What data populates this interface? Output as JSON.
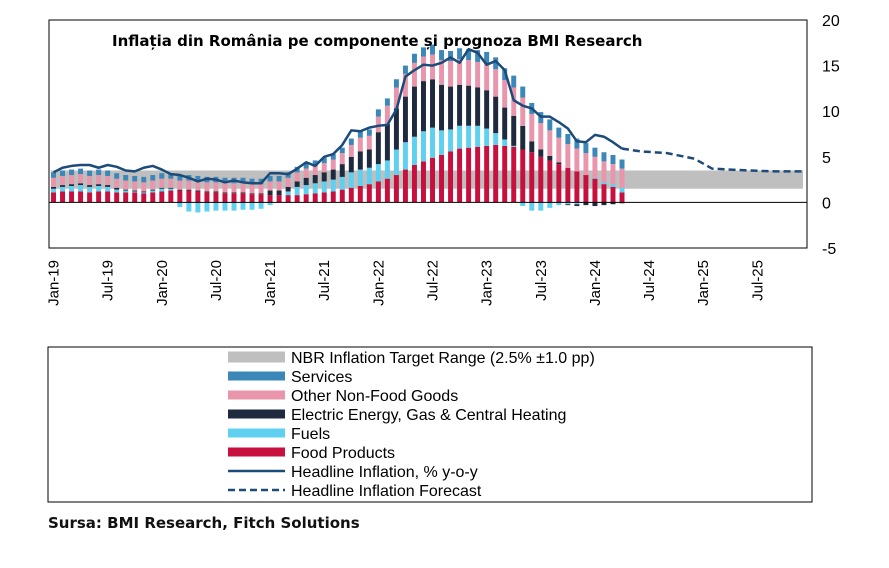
{
  "chart_data": {
    "type": "bar",
    "title": "Inflația din România pe componente și prognoza BMI Research",
    "y_ticks": [
      "20",
      "15",
      "10",
      "5",
      "0",
      "-5"
    ],
    "ylim": [
      -5,
      20
    ],
    "x_ticks": [
      "Jan-19",
      "Jul-19",
      "Jan-20",
      "Jul-20",
      "Jan-21",
      "Jul-21",
      "Jan-22",
      "Jul-22",
      "Jan-23",
      "Jul-23",
      "Jan-24",
      "Jul-24",
      "Jan-25",
      "Jul-25"
    ],
    "x_range": [
      "2019-01",
      "2025-12"
    ],
    "grid": false,
    "legend_position": "below",
    "legend": [
      {
        "label": "NBR Inflation Target Range (2.5% ±1.0 pp)",
        "key": "target",
        "kind": "band",
        "color": "#bfbfbf"
      },
      {
        "label": "Services",
        "key": "services",
        "kind": "bar",
        "color": "#3a87b8"
      },
      {
        "label": "Other Non-Food Goods",
        "key": "other_non_food",
        "kind": "bar",
        "color": "#e996ad"
      },
      {
        "label": "Electric Energy, Gas & Central Heating",
        "key": "energy",
        "kind": "bar",
        "color": "#1f2a3e"
      },
      {
        "label": "Fuels",
        "key": "fuels",
        "kind": "bar",
        "color": "#5fd0ef"
      },
      {
        "label": "Food Products",
        "key": "food",
        "kind": "bar",
        "color": "#c8103e"
      },
      {
        "label": "Headline Inflation, % y-o-y",
        "key": "headline",
        "kind": "line",
        "color": "#1c4b7a"
      },
      {
        "label": "Headline Inflation Forecast",
        "key": "forecast",
        "kind": "dashed",
        "color": "#1c4b7a"
      }
    ],
    "target_range": [
      1.5,
      3.5
    ],
    "stacked_bars": {
      "months": [
        "2019-01",
        "2019-02",
        "2019-03",
        "2019-04",
        "2019-05",
        "2019-06",
        "2019-07",
        "2019-08",
        "2019-09",
        "2019-10",
        "2019-11",
        "2019-12",
        "2020-01",
        "2020-02",
        "2020-03",
        "2020-04",
        "2020-05",
        "2020-06",
        "2020-07",
        "2020-08",
        "2020-09",
        "2020-10",
        "2020-11",
        "2020-12",
        "2021-01",
        "2021-02",
        "2021-03",
        "2021-04",
        "2021-05",
        "2021-06",
        "2021-07",
        "2021-08",
        "2021-09",
        "2021-10",
        "2021-11",
        "2021-12",
        "2022-01",
        "2022-02",
        "2022-03",
        "2022-04",
        "2022-05",
        "2022-06",
        "2022-07",
        "2022-08",
        "2022-09",
        "2022-10",
        "2022-11",
        "2022-12",
        "2023-01",
        "2023-02",
        "2023-03",
        "2023-04",
        "2023-05",
        "2023-06",
        "2023-07",
        "2023-08",
        "2023-09",
        "2023-10",
        "2023-11",
        "2023-12",
        "2024-01",
        "2024-02",
        "2024-03",
        "2024-04"
      ],
      "food": [
        1.1,
        1.2,
        1.2,
        1.2,
        1.1,
        1.2,
        1.2,
        1.1,
        1.1,
        1.1,
        1.0,
        1.1,
        1.2,
        1.3,
        1.3,
        1.3,
        1.2,
        1.1,
        1.1,
        1.0,
        1.0,
        1.0,
        0.9,
        0.9,
        0.8,
        0.8,
        0.8,
        0.8,
        0.9,
        1.0,
        1.1,
        1.2,
        1.4,
        1.6,
        1.8,
        2.0,
        2.3,
        2.6,
        3.0,
        3.6,
        4.1,
        4.5,
        4.9,
        5.2,
        5.6,
        5.9,
        6.0,
        6.1,
        6.2,
        6.3,
        6.2,
        6.1,
        5.8,
        5.5,
        5.0,
        4.6,
        4.2,
        3.8,
        3.4,
        3.0,
        2.6,
        2.0,
        1.7,
        1.1
      ],
      "fuels": [
        0.4,
        0.5,
        0.6,
        0.7,
        0.6,
        0.6,
        0.5,
        0.3,
        0.2,
        0.1,
        0.1,
        0.2,
        0.3,
        0.2,
        -0.5,
        -1.0,
        -1.1,
        -1.0,
        -0.9,
        -0.9,
        -0.9,
        -0.8,
        -0.8,
        -0.7,
        -0.3,
        0.0,
        0.4,
        0.9,
        1.0,
        1.1,
        1.2,
        1.3,
        1.4,
        1.7,
        1.8,
        1.8,
        1.9,
        2.0,
        2.8,
        3.0,
        3.1,
        3.3,
        3.3,
        2.7,
        2.4,
        2.5,
        2.4,
        2.3,
        1.9,
        1.3,
        0.7,
        0.1,
        -0.4,
        -0.9,
        -0.9,
        -0.6,
        -0.3,
        -0.2,
        -0.2,
        0.0,
        0.1,
        0.2,
        0.3,
        0.5
      ],
      "energy": [
        0.2,
        0.2,
        0.2,
        0.2,
        0.2,
        0.2,
        0.2,
        0.2,
        0.1,
        0.1,
        0.1,
        0.1,
        0.1,
        0.1,
        0.1,
        0.1,
        0.1,
        0.1,
        0.1,
        0.1,
        0.1,
        0.1,
        0.1,
        0.1,
        0.5,
        0.5,
        0.5,
        0.6,
        0.8,
        0.9,
        1.0,
        1.1,
        1.4,
        1.7,
        2.0,
        2.0,
        3.5,
        4.0,
        4.5,
        5.0,
        5.5,
        5.5,
        5.3,
        5.0,
        4.7,
        4.5,
        4.4,
        4.2,
        4.2,
        4.0,
        3.5,
        3.3,
        2.6,
        1.2,
        0.8,
        0.5,
        0.2,
        -0.1,
        -0.2,
        -0.3,
        -0.4,
        -0.3,
        -0.2,
        -0.1
      ],
      "other_non_food": [
        1.0,
        1.0,
        1.0,
        1.0,
        1.0,
        1.0,
        1.0,
        1.0,
        1.0,
        1.0,
        1.0,
        1.0,
        1.0,
        1.0,
        1.0,
        1.0,
        1.0,
        1.0,
        1.0,
        1.0,
        1.0,
        1.0,
        1.0,
        1.0,
        1.0,
        1.0,
        1.0,
        1.0,
        1.0,
        1.0,
        1.0,
        1.1,
        1.2,
        1.3,
        1.5,
        1.5,
        1.7,
        2.0,
        2.3,
        2.5,
        2.6,
        2.7,
        2.7,
        2.7,
        2.8,
        2.8,
        2.8,
        2.8,
        2.9,
        3.0,
        3.0,
        3.1,
        3.1,
        3.0,
        2.9,
        2.8,
        2.7,
        2.6,
        2.5,
        2.4,
        2.3,
        2.3,
        2.2,
        2.1
      ],
      "services": [
        0.6,
        0.6,
        0.6,
        0.6,
        0.6,
        0.6,
        0.6,
        0.6,
        0.6,
        0.6,
        0.6,
        0.6,
        0.6,
        0.6,
        0.6,
        0.6,
        0.6,
        0.6,
        0.6,
        0.6,
        0.6,
        0.6,
        0.6,
        0.6,
        0.6,
        0.6,
        0.6,
        0.6,
        0.6,
        0.6,
        0.6,
        0.6,
        0.6,
        0.7,
        0.7,
        0.7,
        0.8,
        0.8,
        0.9,
        0.9,
        1.0,
        1.0,
        1.1,
        1.1,
        1.1,
        1.2,
        1.2,
        1.3,
        1.3,
        1.3,
        1.3,
        1.3,
        1.2,
        1.2,
        1.2,
        1.2,
        1.1,
        1.1,
        1.1,
        1.1,
        1.0,
        1.0,
        1.0,
        1.0
      ]
    },
    "headline": {
      "months": [
        "2019-01",
        "2019-02",
        "2019-03",
        "2019-04",
        "2019-05",
        "2019-06",
        "2019-07",
        "2019-08",
        "2019-09",
        "2019-10",
        "2019-11",
        "2019-12",
        "2020-01",
        "2020-02",
        "2020-03",
        "2020-04",
        "2020-05",
        "2020-06",
        "2020-07",
        "2020-08",
        "2020-09",
        "2020-10",
        "2020-11",
        "2020-12",
        "2021-01",
        "2021-02",
        "2021-03",
        "2021-04",
        "2021-05",
        "2021-06",
        "2021-07",
        "2021-08",
        "2021-09",
        "2021-10",
        "2021-11",
        "2021-12",
        "2022-01",
        "2022-02",
        "2022-03",
        "2022-04",
        "2022-05",
        "2022-06",
        "2022-07",
        "2022-08",
        "2022-09",
        "2022-10",
        "2022-11",
        "2022-12",
        "2023-01",
        "2023-02",
        "2023-03",
        "2023-04",
        "2023-05",
        "2023-06",
        "2023-07",
        "2023-08",
        "2023-09",
        "2023-10",
        "2023-11",
        "2023-12",
        "2024-01",
        "2024-02",
        "2024-03",
        "2024-04"
      ],
      "values": [
        3.3,
        3.8,
        4.0,
        4.1,
        4.1,
        3.8,
        4.1,
        3.9,
        3.5,
        3.4,
        3.8,
        4.0,
        3.6,
        3.1,
        3.0,
        2.7,
        2.3,
        2.6,
        2.5,
        2.2,
        2.4,
        2.2,
        2.1,
        2.1,
        3.2,
        3.2,
        3.1,
        3.7,
        4.4,
        4.0,
        5.0,
        5.3,
        6.3,
        7.9,
        7.8,
        8.2,
        8.4,
        8.5,
        10.2,
        13.8,
        14.5,
        15.1,
        15.0,
        15.3,
        15.9,
        15.3,
        16.8,
        16.4,
        15.1,
        15.5,
        14.5,
        11.2,
        10.6,
        10.3,
        9.4,
        9.4,
        8.8,
        8.1,
        6.7,
        6.6,
        7.4,
        7.2,
        6.6,
        5.9
      ]
    },
    "forecast": {
      "months": [
        "2024-04",
        "2024-06",
        "2024-09",
        "2024-12",
        "2025-02",
        "2025-04",
        "2025-06",
        "2025-09",
        "2025-12"
      ],
      "values": [
        5.9,
        5.6,
        5.4,
        4.8,
        3.7,
        3.6,
        3.5,
        3.4,
        3.4
      ]
    }
  },
  "source_note": "Sursa: BMI Research, Fitch Solutions"
}
